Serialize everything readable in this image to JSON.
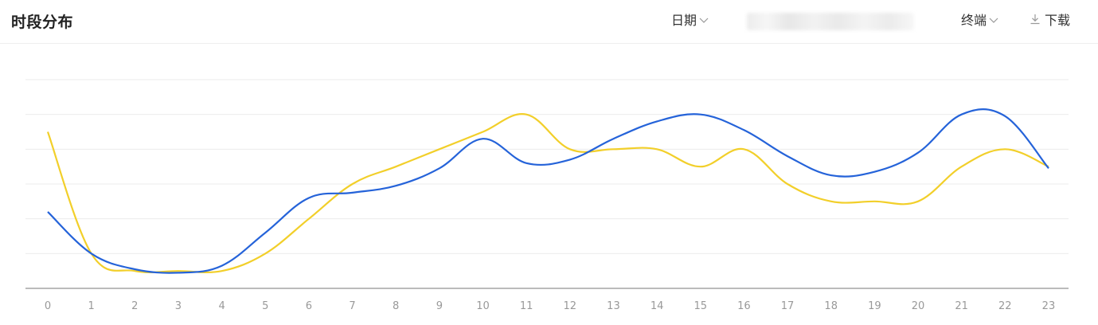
{
  "header": {
    "title": "时段分布",
    "date_label": "日期",
    "terminal_label": "终端",
    "download_label": "下载"
  },
  "colors": {
    "series_blue": "#2563d9",
    "series_yellow": "#f2cf2a",
    "grid": "#ebebeb",
    "axis": "#bbbbbb"
  },
  "chart_data": {
    "type": "line",
    "title": "",
    "xlabel": "",
    "ylabel": "",
    "x": [
      "0",
      "1",
      "2",
      "3",
      "4",
      "5",
      "6",
      "7",
      "8",
      "9",
      "10",
      "11",
      "12",
      "13",
      "14",
      "15",
      "16",
      "17",
      "18",
      "19",
      "20",
      "21",
      "22",
      "23"
    ],
    "ylim": [
      0,
      6
    ],
    "grid": true,
    "series": [
      {
        "color": "#2563d9",
        "values": [
          2.2,
          1.0,
          0.55,
          0.45,
          0.65,
          1.6,
          2.6,
          2.75,
          2.95,
          3.45,
          4.3,
          3.6,
          3.7,
          4.3,
          4.8,
          5.0,
          4.55,
          3.8,
          3.25,
          3.35,
          3.9,
          5.0,
          4.95,
          3.45
        ]
      },
      {
        "color": "#f2cf2a",
        "values": [
          4.5,
          1.0,
          0.5,
          0.5,
          0.5,
          1.0,
          2.0,
          3.0,
          3.5,
          4.0,
          4.5,
          5.0,
          4.0,
          4.0,
          4.0,
          3.5,
          4.0,
          3.0,
          2.5,
          2.5,
          2.5,
          3.5,
          4.0,
          3.5
        ]
      }
    ]
  }
}
